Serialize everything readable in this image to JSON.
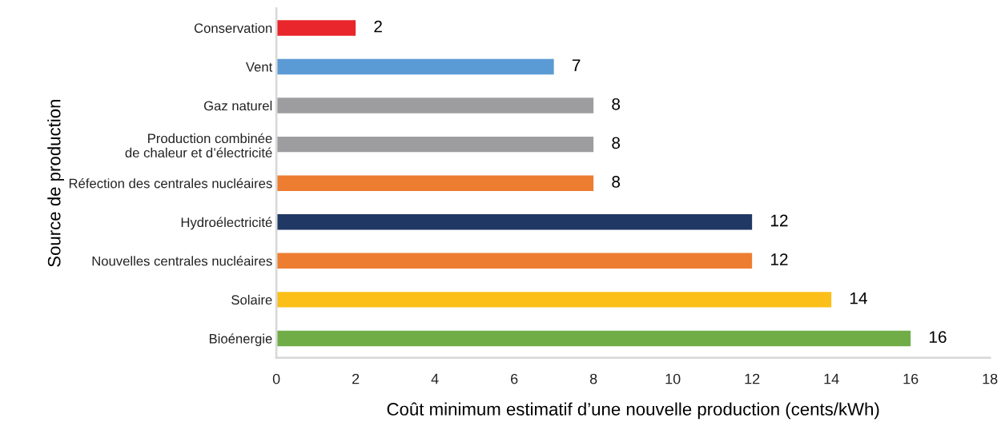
{
  "chart_data": {
    "type": "bar",
    "orientation": "horizontal",
    "xlabel": "Coût minimum estimatif d’une nouvelle production (cents/kWh)",
    "ylabel": "Source de production",
    "categories": [
      "Conservation",
      "Vent",
      "Gaz naturel",
      "Production combinée\nde chaleur et d’électricité",
      "Réfection des centrales nucléaires",
      "Hydroélectricité",
      "Nouvelles centrales nucléaires",
      "Solaire",
      "Bioénergie"
    ],
    "values": [
      2,
      7,
      8,
      8,
      8,
      12,
      12,
      14,
      16
    ],
    "colors": [
      "#e8262b",
      "#5b9bd5",
      "#9d9d9f",
      "#9d9d9f",
      "#ed7d31",
      "#203864",
      "#ed7d31",
      "#fbbf18",
      "#70ad47"
    ],
    "xlim": [
      0,
      18
    ],
    "xticks": [
      0,
      2,
      4,
      6,
      8,
      10,
      12,
      14,
      16,
      18
    ],
    "data_labels": true,
    "grid": false,
    "legend": false
  }
}
